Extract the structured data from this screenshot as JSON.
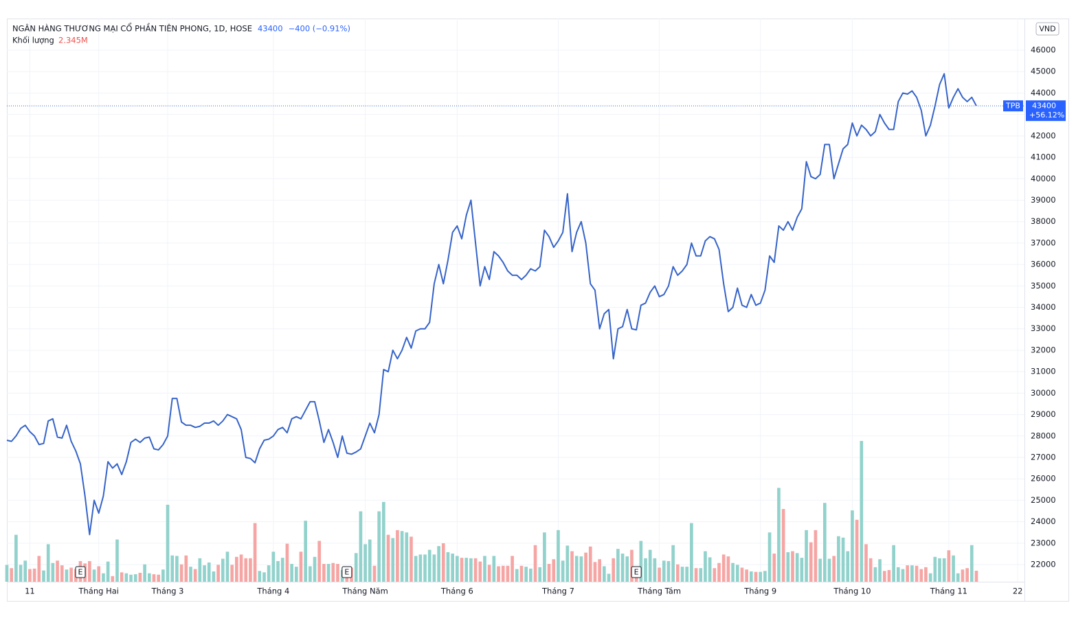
{
  "chart_data": {
    "type": "line",
    "title": "NGÂN HÀNG THƯƠNG MẠI CỔ PHẦN TIÊN PHONG, 1D, HOSE",
    "last_value": 43400,
    "last_change_label": "−400 (−0.91%)",
    "symbol": "TPB",
    "badge_change_label": "+56.12%",
    "currency": "VND",
    "categories": [
      null,
      null,
      null,
      null,
      null,
      "11",
      null,
      null,
      null,
      null,
      null,
      null,
      null,
      null,
      null,
      null,
      null,
      null,
      null,
      null,
      "Tháng Hai",
      null,
      null,
      null,
      null,
      null,
      null,
      null,
      null,
      null,
      null,
      null,
      null,
      null,
      null,
      "Tháng 3",
      null,
      null,
      null,
      null,
      null,
      null,
      null,
      null,
      null,
      null,
      null,
      null,
      null,
      null,
      null,
      null,
      null,
      null,
      null,
      null,
      null,
      null,
      "Tháng 4",
      null,
      null,
      null,
      null,
      null,
      null,
      null,
      null,
      null,
      null,
      null,
      null,
      null,
      null,
      null,
      null,
      null,
      null,
      null,
      "Tháng Năm",
      null,
      null,
      null,
      null,
      null,
      null,
      null,
      null,
      null,
      null,
      null,
      null,
      null,
      null,
      null,
      null,
      null,
      null,
      null,
      "Tháng 6",
      null,
      null,
      null,
      null,
      null,
      null,
      null,
      null,
      null,
      null,
      null,
      null,
      null,
      null,
      null,
      null,
      null,
      null,
      null,
      null,
      null,
      "Tháng 7",
      null,
      null,
      null,
      null,
      null,
      null,
      null,
      null,
      null,
      null,
      null,
      null,
      null,
      null,
      null,
      null,
      null,
      null,
      null,
      null,
      null,
      "Tháng Tám",
      null,
      null,
      null,
      null,
      null,
      null,
      null,
      null,
      null,
      null,
      null,
      null,
      null,
      null,
      null,
      null,
      null,
      null,
      null,
      null,
      null,
      "Tháng 9",
      null,
      null,
      null,
      null,
      null,
      null,
      null,
      null,
      null,
      null,
      null,
      null,
      null,
      null,
      null,
      null,
      null,
      null,
      null,
      "Tháng 10",
      null,
      null,
      null,
      null,
      null,
      null,
      null,
      null,
      null,
      null,
      null,
      null,
      null,
      null,
      null,
      null,
      null,
      null,
      null,
      null,
      "Tháng 11",
      null,
      null,
      null,
      null,
      null,
      null,
      null,
      null,
      null,
      null,
      null,
      null,
      null,
      null,
      "22"
    ],
    "series": [
      {
        "name": "TPB",
        "color": "#3563c9",
        "values": [
          27800,
          27750,
          28000,
          28350,
          28500,
          28200,
          28000,
          27600,
          27650,
          28700,
          28800,
          27950,
          27900,
          28500,
          27750,
          27300,
          26700,
          25200,
          23400,
          25000,
          24400,
          25200,
          26800,
          26500,
          26700,
          26200,
          26800,
          27700,
          27850,
          27700,
          27900,
          27950,
          27400,
          27350,
          27600,
          28000,
          29750,
          29750,
          28650,
          28500,
          28500,
          28400,
          28450,
          28600,
          28600,
          28700,
          28500,
          28700,
          29000,
          28900,
          28800,
          28300,
          27000,
          26950,
          26750,
          27400,
          27800,
          27850,
          28000,
          28300,
          28400,
          28150,
          28800,
          28900,
          28800,
          29200,
          29600,
          29600,
          28700,
          27700,
          28300,
          27700,
          27000,
          28000,
          27200,
          27150,
          27250,
          27400,
          28000,
          28600,
          28150,
          29000,
          31100,
          31000,
          32000,
          31600,
          32000,
          32600,
          32100,
          32900,
          33000,
          33000,
          33300,
          35100,
          36000,
          35100,
          36200,
          37500,
          37800,
          37200,
          38300,
          39000,
          37000,
          35000,
          35900,
          35300,
          36600,
          36400,
          36100,
          35700,
          35500,
          35500,
          35300,
          35500,
          35800,
          35700,
          35900,
          37600,
          37300,
          36800,
          37100,
          37500,
          39300,
          36600,
          37500,
          38000,
          37000,
          35100,
          34800,
          33000,
          33700,
          33900,
          31600,
          33000,
          33100,
          33900,
          33000,
          32950,
          34100,
          34200,
          34700,
          35000,
          34500,
          34600,
          35000,
          35900,
          35500,
          35700,
          36000,
          37000,
          36400,
          36400,
          37100,
          37300,
          37200,
          36700,
          35100,
          33800,
          34000,
          34900,
          34100,
          34000,
          34600,
          34100,
          34200,
          34800,
          36400,
          36100,
          37800,
          37600,
          38000,
          37600,
          38200,
          38600,
          40800,
          40100,
          40000,
          40200,
          41600,
          41600,
          40000,
          40700,
          41400,
          41600,
          42600,
          42000,
          42500,
          42300,
          42000,
          42200,
          43000,
          42600,
          42300,
          42300,
          43600,
          44000,
          43950,
          44100,
          43800,
          43200,
          42000,
          42500,
          43400,
          44400,
          44900,
          43300,
          43800,
          44200,
          43800,
          43600,
          43800,
          43400,
          null,
          null,
          null,
          null,
          null,
          null,
          null,
          null,
          null
        ]
      }
    ],
    "volume": {
      "name": "Khối lượng",
      "last_label": "2.345M",
      "up_color": "#92d2cc",
      "down_color": "#f5a6a4",
      "ylim": [
        0,
        120
      ],
      "values": [
        3.6,
        2.9,
        10,
        3.6,
        4.5,
        2.7,
        2.8,
        5.5,
        2.4,
        8,
        4,
        4.5,
        3.5,
        2.6,
        3,
        2.7,
        4.4,
        3.9,
        4.4,
        2.6,
        3.3,
        1.8,
        4.3,
        1.2,
        9,
        2,
        1.8,
        1.5,
        1.6,
        1.9,
        3.7,
        1.8,
        1.6,
        1.5,
        2.6,
        16.4,
        5.6,
        5.5,
        3.7,
        5.6,
        3.2,
        2.7,
        5,
        3.5,
        4.1,
        2.2,
        3.6,
        4.9,
        6.4,
        3.6,
        5.3,
        5.8,
        5,
        5,
        12.5,
        2.3,
        2,
        3.5,
        6.4,
        4.4,
        5.1,
        8.1,
        3.8,
        3.2,
        6.4,
        13,
        3.3,
        5.3,
        8.7,
        3.8,
        3.8,
        4,
        3.8,
        2.5,
        2.6,
        3,
        6.1,
        15,
        8,
        9,
        3.4,
        15,
        17,
        10,
        9.3,
        11,
        10.8,
        10.5,
        9.6,
        5.5,
        5.8,
        5.8,
        6.8,
        5.8,
        7.6,
        8.2,
        6.3,
        6,
        5.5,
        5.1,
        5.1,
        5,
        5,
        4.3,
        5.5,
        3.6,
        5.5,
        3.3,
        3.4,
        3.4,
        5.5,
        2.7,
        3.4,
        3.2,
        2.8,
        7.8,
        3.1,
        10.5,
        3.8,
        4.8,
        11,
        4.5,
        7.7,
        6.5,
        5.5,
        5.4,
        6.2,
        7.5,
        4.2,
        4.8,
        3.3,
        1.7,
        5,
        7,
        6,
        5.4,
        6.8,
        2.3,
        8.7,
        5,
        6.8,
        5,
        3,
        4.5,
        4.4,
        7.8,
        3.7,
        3.2,
        3.2,
        12.5,
        2.9,
        2.9,
        6.5,
        5.2,
        2.9,
        4,
        5.8,
        5.4,
        4,
        3.6,
        3,
        2.6,
        2.2,
        2.1,
        2.1,
        2.3,
        10.5,
        6,
        20,
        15.5,
        6.3,
        6.5,
        6.1,
        5.1,
        11,
        8.4,
        11,
        4.9,
        16.8,
        4.9,
        5.5,
        9.7,
        9.4,
        6.5,
        15.2,
        13.2,
        30,
        8,
        5,
        3.1,
        4.8,
        2.3,
        2.5,
        7.8,
        3.1,
        2.7,
        3.5,
        3.5,
        3.4,
        2.7,
        3.1,
        1.8,
        5.3,
        5,
        5,
        6.7,
        5.6,
        1.8,
        2.6,
        2.9,
        7.8,
        2.345
      ]
    },
    "events": [
      {
        "label": "E",
        "at": 16
      },
      {
        "label": "E",
        "at": 74
      },
      {
        "label": "E",
        "at": 137
      }
    ],
    "ylim": [
      21200,
      47475
    ],
    "yticks": [
      22000,
      23000,
      24000,
      25000,
      26000,
      27000,
      28000,
      29000,
      30000,
      31000,
      32000,
      33000,
      34000,
      35000,
      36000,
      37000,
      38000,
      39000,
      40000,
      41000,
      42000,
      43000,
      44000,
      45000,
      46000
    ],
    "grid": true
  }
}
